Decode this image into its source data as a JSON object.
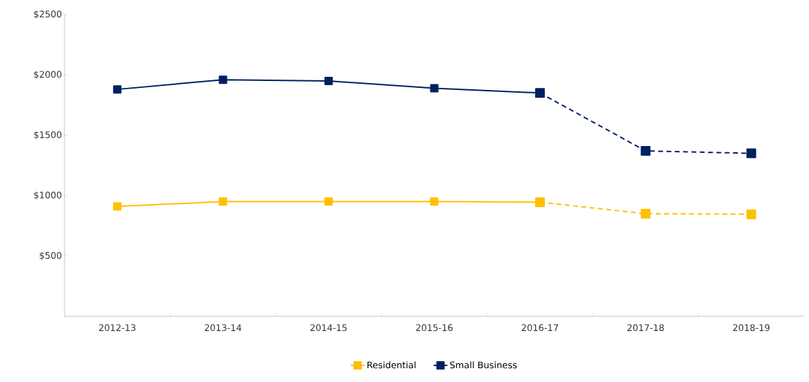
{
  "chart_data": {
    "type": "line",
    "categories": [
      "2012-13",
      "2013-14",
      "2014-15",
      "2015-16",
      "2016-17",
      "2017-18",
      "2018-19"
    ],
    "series": [
      {
        "name": "Residential",
        "color": "#ffc000",
        "line_style": "solid",
        "values": [
          910,
          950,
          950,
          950,
          945,
          null,
          null
        ]
      },
      {
        "name": "Small Business",
        "color": "#002060",
        "line_style": "solid",
        "values": [
          1880,
          1960,
          1950,
          1890,
          1850,
          null,
          null
        ]
      },
      {
        "color": "#ffc000",
        "line_style": "dashed",
        "values": [
          null,
          null,
          null,
          null,
          945,
          850,
          845
        ]
      },
      {
        "color": "#002060",
        "line_style": "dashed",
        "values": [
          null,
          null,
          null,
          null,
          1850,
          1370,
          1350
        ]
      }
    ],
    "ylim": [
      0,
      2500
    ],
    "yticks": [
      {
        "value": 500,
        "label": "$500"
      },
      {
        "value": 1000,
        "label": "$1000"
      },
      {
        "value": 1500,
        "label": "$1500"
      },
      {
        "value": 2000,
        "label": "$2000"
      },
      {
        "value": 2500,
        "label": "$2500"
      }
    ],
    "marker": "square",
    "grid": false,
    "legend": "bottom"
  }
}
